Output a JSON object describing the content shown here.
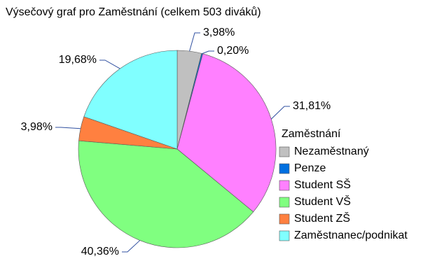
{
  "chart_data": {
    "type": "pie",
    "title": "Výsečový graf pro Zaměstnání (celkem 503 diváků)",
    "legend_title": "Zaměstnání",
    "categories": [
      "Nezaměstnaný",
      "Penze",
      "Student SŠ",
      "Student VŠ",
      "Student ZŠ",
      "Zaměstnanec/podnikat"
    ],
    "values": [
      3.98,
      0.2,
      31.81,
      40.36,
      3.98,
      19.68
    ],
    "value_labels": [
      "3,98%",
      "0,20%",
      "31,81%",
      "40,36%",
      "3,98%",
      "19,68%"
    ],
    "colors": [
      "#c0c0c0",
      "#0070e0",
      "#ff80ff",
      "#80ff80",
      "#ff8040",
      "#80ffff"
    ],
    "legend": "right"
  }
}
